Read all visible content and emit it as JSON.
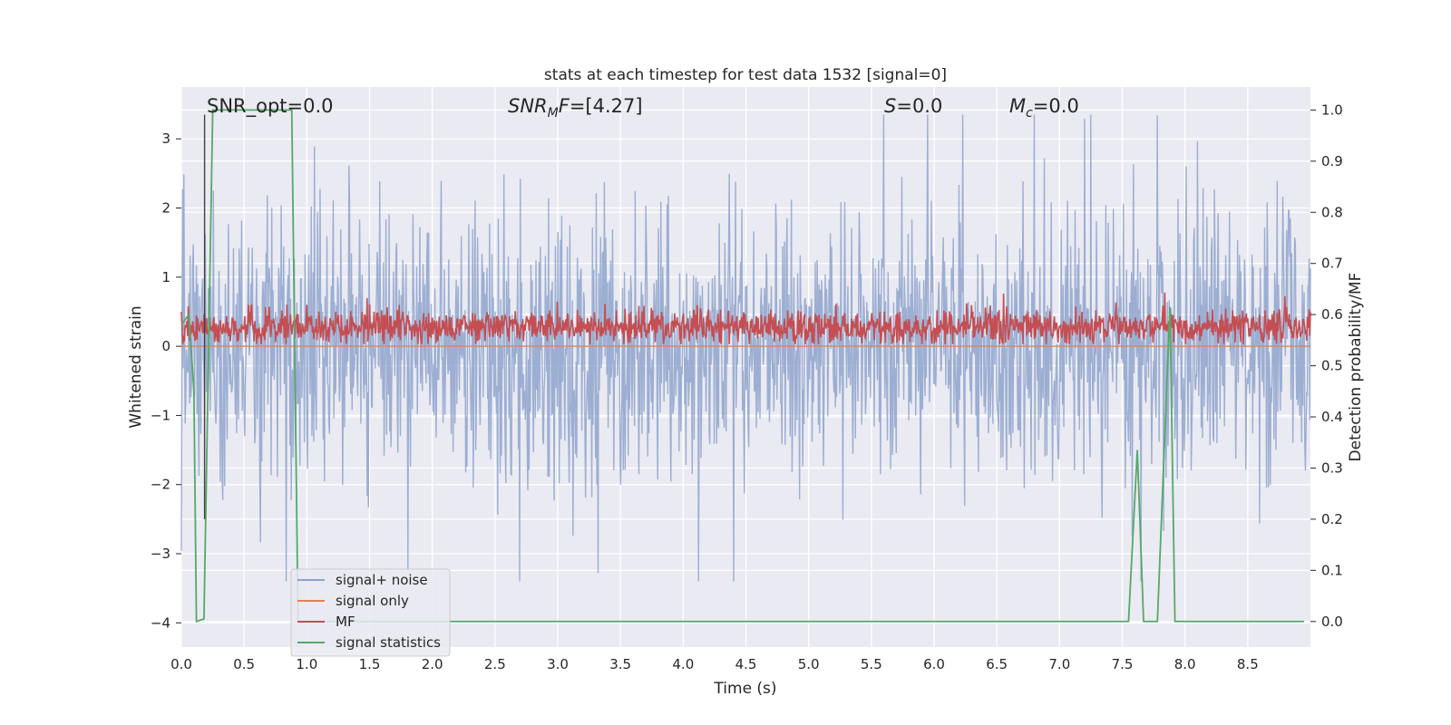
{
  "chart_data": {
    "type": "line",
    "title": "stats at each timestep for test data 1532 [signal=0]",
    "xlabel": "Time (s)",
    "ylabel": "Whitened strain",
    "y2label": "Detection probability/MF",
    "xlim": [
      0.0,
      9.0
    ],
    "ylim": [
      -4.35,
      3.75
    ],
    "y2lim": [
      -0.05,
      1.045
    ],
    "x_ticks": [
      "0.0",
      "0.5",
      "1.0",
      "1.5",
      "2.0",
      "2.5",
      "3.0",
      "3.5",
      "4.0",
      "4.5",
      "5.0",
      "5.5",
      "6.0",
      "6.5",
      "7.0",
      "7.5",
      "8.0",
      "8.5"
    ],
    "y_ticks": [
      "3",
      "2",
      "1",
      "0",
      "−1",
      "−2",
      "−3",
      "−4"
    ],
    "y2_ticks": [
      "1.0",
      "0.9",
      "0.8",
      "0.7",
      "0.6",
      "0.5",
      "0.4",
      "0.3",
      "0.2",
      "0.1",
      "0.0"
    ],
    "grid": true,
    "annotations": {
      "snr_opt": "SNR_opt=0.0",
      "snr_mf_base": "SNR",
      "snr_mf_sub": "M",
      "snr_mf_rest": "F=[4.27]",
      "s_italic": "S",
      "s_rest": "=0.0",
      "mc_italic": "M",
      "mc_sub": "c",
      "mc_rest": "=0.0"
    },
    "legend": {
      "placement": "lower-left",
      "entries": [
        "signal+ noise",
        "signal only",
        "MF",
        "signal statistics"
      ]
    },
    "series": [
      {
        "name": "signal+ noise",
        "color": "#8ea3cc",
        "axis": "left",
        "kind": "noise",
        "sample_count": 1800,
        "approx_range": [
          -3.4,
          3.35
        ]
      },
      {
        "name": "signal only",
        "color": "#dd8452",
        "axis": "left",
        "x": [
          0.0,
          9.0
        ],
        "y": [
          0.0,
          0.0
        ]
      },
      {
        "name": "MF",
        "color": "#c44e52",
        "axis": "left",
        "kind": "mf",
        "sample_count": 1800,
        "approx_range": [
          0.0,
          0.9
        ]
      },
      {
        "name": "signal statistics",
        "color": "#55a868",
        "axis": "right",
        "x": [
          0.0,
          0.06,
          0.1,
          0.12,
          0.18,
          0.25,
          0.3,
          0.5,
          0.88,
          0.93,
          0.95,
          7.55,
          7.62,
          7.67,
          7.78,
          7.88,
          7.92,
          7.95,
          8.95
        ],
        "y": [
          0.58,
          0.6,
          0.45,
          0.0,
          0.005,
          1.0,
          1.0,
          1.0,
          1.0,
          0.0,
          0.0,
          0.0,
          0.335,
          0.0,
          0.0,
          0.615,
          0.0,
          0.0,
          0.0
        ]
      },
      {
        "name": "",
        "color": "#404040",
        "axis": "left",
        "x": [
          0.185,
          0.185
        ],
        "y": [
          -2.5,
          3.35
        ]
      }
    ]
  }
}
